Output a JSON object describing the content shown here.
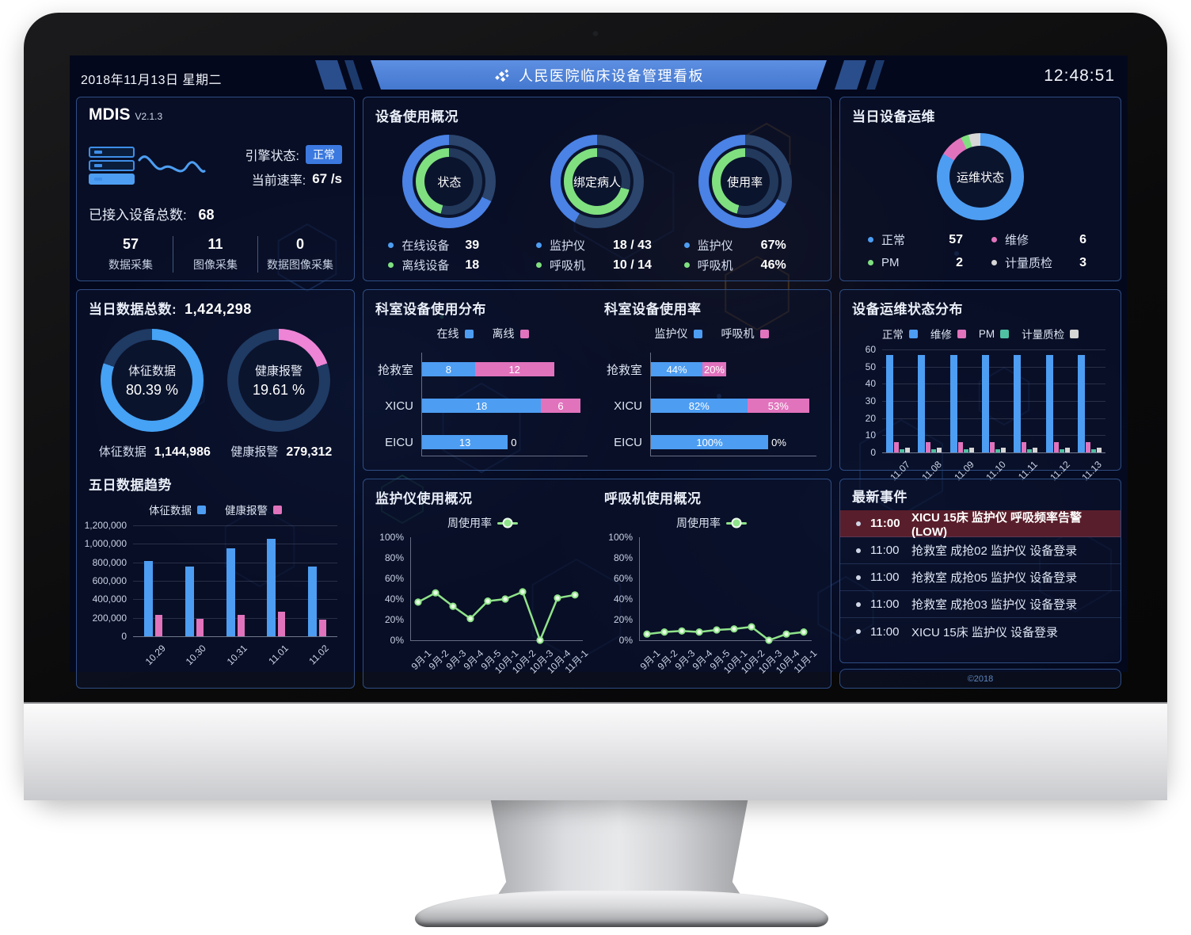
{
  "colors": {
    "blue": "#4d9df2",
    "donut_blue": "#4a82e6",
    "blue_big": "#45a2f5",
    "green": "#80e080",
    "line_green": "#8fe38a",
    "pink": "#e173bd",
    "donut_pink": "#ee84d6",
    "teal": "#4fc0a2",
    "gray": "#d6d6d6",
    "track": "#2b456d",
    "track_dark": "#22395c",
    "hole": "#0b142d",
    "alert_bg": "#591e2b",
    "badge_blue": "#3b79e0"
  },
  "header": {
    "date": "2018年11月13日 星期二",
    "title": "人民医院临床设备管理看板",
    "time": "12:48:51"
  },
  "mdis": {
    "name": "MDIS",
    "version": "V2.1.3",
    "engine_label": "引擎状态:",
    "engine_status": "正常",
    "rate_label": "当前速率:",
    "rate_value": "67 /s",
    "total_label": "已接入设备总数:",
    "total_value": "68",
    "stats": [
      {
        "value": "57",
        "label": "数据采集"
      },
      {
        "value": "11",
        "label": "图像采集"
      },
      {
        "value": "0",
        "label": "数据图像采集"
      }
    ]
  },
  "usage_overview": {
    "title": "设备使用概况",
    "donuts": [
      {
        "center": "状态",
        "outer_pct": 68,
        "inner_pct": 46,
        "legend": [
          {
            "color": "blue",
            "label": "在线设备",
            "value": "39"
          },
          {
            "color": "green",
            "label": "离线设备",
            "value": "18"
          }
        ]
      },
      {
        "center": "绑定病人",
        "outer_pct": 42,
        "inner_pct": 71,
        "legend": [
          {
            "color": "blue",
            "label": "监护仪",
            "value": "18 / 43"
          },
          {
            "color": "green",
            "label": "呼吸机",
            "value": "10 / 14"
          }
        ]
      },
      {
        "center": "使用率",
        "outer_pct": 67,
        "inner_pct": 46,
        "legend": [
          {
            "color": "blue",
            "label": "监护仪",
            "value": "67%"
          },
          {
            "color": "green",
            "label": "呼吸机",
            "value": "46%"
          }
        ]
      }
    ]
  },
  "maintenance_today": {
    "title": "当日设备运维",
    "center": "运维状态",
    "segments": [
      {
        "label": "正常",
        "value": 57,
        "color_key": "blue"
      },
      {
        "label": "维修",
        "value": 6,
        "color_key": "pink"
      },
      {
        "label": "PM",
        "value": 2,
        "color_key": "green"
      },
      {
        "label": "计量质检",
        "value": 3,
        "color_key": "gray"
      }
    ]
  },
  "data_today": {
    "total_label": "当日数据总数:",
    "total_value": "1,424,298",
    "donuts": [
      {
        "label": "体征数据",
        "pct_text": "80.39 %",
        "pct": 80.39,
        "color_key": "blue_big"
      },
      {
        "label": "健康报警",
        "pct_text": "19.61 %",
        "pct": 19.61,
        "color_key": "donut_pink"
      }
    ],
    "stats": [
      {
        "label": "体征数据",
        "value": "1,144,986"
      },
      {
        "label": "健康报警",
        "value": "279,312"
      }
    ]
  },
  "five_day_trend": {
    "title": "五日数据趋势",
    "chart": {
      "type": "bar",
      "categories": [
        "10.29",
        "10.30",
        "10.31",
        "11.01",
        "11.02"
      ],
      "series": [
        {
          "name": "体征数据",
          "color_key": "blue",
          "values": [
            815000,
            755000,
            955000,
            1055000,
            755000
          ]
        },
        {
          "name": "健康报警",
          "color_key": "pink",
          "values": [
            230000,
            190000,
            235000,
            270000,
            180000
          ]
        }
      ],
      "y_ticks": [
        "1,200,000",
        "1,000,000",
        "800,000",
        "600,000",
        "400,000",
        "200,000",
        "0"
      ],
      "ymax": 1200000
    }
  },
  "dept_distribution": {
    "title": "科室设备使用分布",
    "chart": {
      "type": "hbar-stacked",
      "categories": [
        "抢救室",
        "XICU",
        "EICU"
      ],
      "series": [
        {
          "name": "在线",
          "color_key": "blue",
          "values": [
            8,
            18,
            13
          ]
        },
        {
          "name": "离线",
          "color_key": "pink",
          "values": [
            12,
            6,
            0
          ]
        }
      ],
      "labels": [
        [
          "8",
          "12"
        ],
        [
          "18",
          "6"
        ],
        [
          "13",
          "0"
        ]
      ],
      "xmax": 24
    }
  },
  "dept_usage": {
    "title": "科室设备使用率",
    "chart": {
      "type": "hbar-stacked",
      "categories": [
        "抢救室",
        "XICU",
        "EICU"
      ],
      "series": [
        {
          "name": "监护仪",
          "color_key": "blue",
          "values": [
            44,
            82,
            100
          ]
        },
        {
          "name": "呼吸机",
          "color_key": "pink",
          "values": [
            20,
            53,
            0
          ]
        }
      ],
      "labels": [
        [
          "44%",
          "20%"
        ],
        [
          "82%",
          "53%"
        ],
        [
          "100%",
          "0%"
        ]
      ],
      "xmax": 135
    }
  },
  "maintenance_distribution": {
    "title": "设备运维状态分布",
    "chart": {
      "type": "bar",
      "categories": [
        "11.07",
        "11.08",
        "11.09",
        "11.10",
        "11.11",
        "11.12",
        "11.13"
      ],
      "series": [
        {
          "name": "正常",
          "color_key": "blue",
          "values": [
            57,
            57,
            57,
            57,
            57,
            57,
            57
          ]
        },
        {
          "name": "维修",
          "color_key": "pink",
          "values": [
            6,
            6,
            6,
            6,
            6,
            6,
            6
          ]
        },
        {
          "name": "PM",
          "color_key": "teal",
          "values": [
            2,
            2,
            2,
            2,
            2,
            2,
            2
          ]
        },
        {
          "name": "计量质检",
          "color_key": "gray",
          "values": [
            3,
            3,
            3,
            3,
            3,
            3,
            3
          ]
        }
      ],
      "y_ticks": [
        "60",
        "50",
        "40",
        "30",
        "20",
        "10",
        "0"
      ],
      "ymax": 60
    }
  },
  "monitor_usage": {
    "title": "监护仪使用概况",
    "legend": "周使用率",
    "chart": {
      "type": "line",
      "categories": [
        "9月-1",
        "9月-2",
        "9月-3",
        "9月-4",
        "9月-5",
        "10月-1",
        "10月-2",
        "10月-3",
        "10月-4",
        "11月-1"
      ],
      "values": [
        37,
        46,
        33,
        21,
        38,
        40,
        47,
        0,
        41,
        44
      ],
      "y_ticks": [
        "100%",
        "80%",
        "60%",
        "40%",
        "20%",
        "0%"
      ],
      "ymax": 100
    }
  },
  "ventilator_usage": {
    "title": "呼吸机使用概况",
    "legend": "周使用率",
    "chart": {
      "type": "line",
      "categories": [
        "9月-1",
        "9月-2",
        "9月-3",
        "9月-4",
        "9月-5",
        "10月-1",
        "10月-2",
        "10月-3",
        "10月-4",
        "11月-1"
      ],
      "values": [
        6,
        8,
        9,
        8,
        10,
        11,
        13,
        0,
        6,
        8
      ],
      "y_ticks": [
        "100%",
        "80%",
        "60%",
        "40%",
        "20%",
        "0%"
      ],
      "ymax": 100
    }
  },
  "events": {
    "title": "最新事件",
    "items": [
      {
        "time": "11:00",
        "text": "XICU 15床 监护仪 呼吸频率告警(LOW)",
        "alert": true
      },
      {
        "time": "11:00",
        "text": "抢救室 成抢02 监护仪 设备登录",
        "alert": false
      },
      {
        "time": "11:00",
        "text": "抢救室 成抢05 监护仪 设备登录",
        "alert": false
      },
      {
        "time": "11:00",
        "text": "抢救室 成抢03 监护仪 设备登录",
        "alert": false
      },
      {
        "time": "11:00",
        "text": "XICU 15床 监护仪 设备登录",
        "alert": false
      }
    ],
    "footer": "©2018"
  }
}
